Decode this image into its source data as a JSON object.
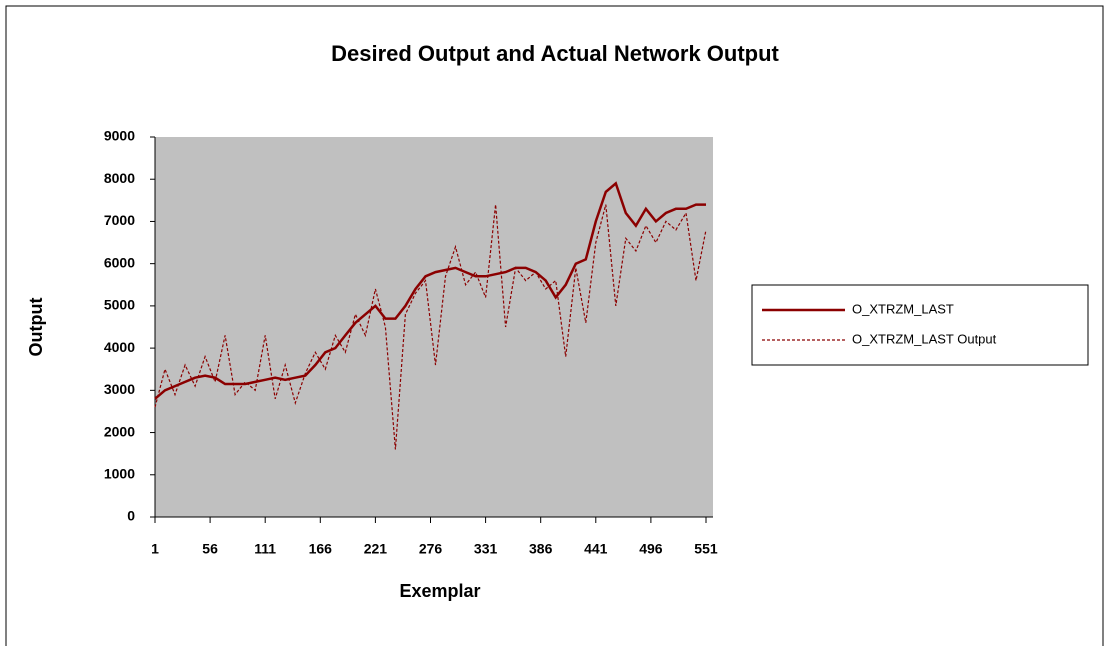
{
  "chart_data": {
    "type": "line",
    "title": "Desired Output and Actual Network Output",
    "x_label": "Exemplar",
    "y_label": "Output",
    "x": [
      1,
      11,
      21,
      31,
      41,
      51,
      61,
      71,
      81,
      91,
      101,
      111,
      121,
      131,
      141,
      151,
      161,
      171,
      181,
      191,
      201,
      211,
      221,
      231,
      241,
      251,
      261,
      271,
      281,
      291,
      301,
      311,
      321,
      331,
      341,
      351,
      361,
      371,
      381,
      391,
      401,
      411,
      421,
      431,
      441,
      451,
      461,
      471,
      481,
      491,
      501,
      511,
      521,
      531,
      541,
      551
    ],
    "series": [
      {
        "name": "O_XTRZM_LAST",
        "color": "#8b0000",
        "dash": false,
        "values": [
          2800,
          3000,
          3100,
          3200,
          3300,
          3350,
          3300,
          3150,
          3150,
          3150,
          3200,
          3250,
          3300,
          3250,
          3300,
          3350,
          3600,
          3900,
          4000,
          4300,
          4600,
          4800,
          5000,
          4700,
          4700,
          5000,
          5400,
          5700,
          5800,
          5850,
          5900,
          5800,
          5700,
          5700,
          5750,
          5800,
          5900,
          5900,
          5800,
          5600,
          5200,
          5500,
          6000,
          6100,
          7000,
          7700,
          7900,
          7200,
          6900,
          7300,
          7000,
          7200,
          7300,
          7300,
          7400,
          7400
        ]
      },
      {
        "name": "O_XTRZM_LAST Output",
        "color": "#8b0000",
        "dash": true,
        "values": [
          2600,
          3500,
          2900,
          3600,
          3100,
          3800,
          3200,
          4300,
          2900,
          3200,
          3000,
          4300,
          2800,
          3600,
          2700,
          3400,
          3900,
          3500,
          4300,
          3900,
          4800,
          4300,
          5400,
          4500,
          1600,
          4800,
          5300,
          5600,
          3600,
          5700,
          6400,
          5500,
          5800,
          5200,
          7400,
          4500,
          5900,
          5600,
          5800,
          5400,
          5600,
          3800,
          5900,
          4600,
          6500,
          7400,
          5000,
          6600,
          6300,
          6900,
          6500,
          7000,
          6800,
          7200,
          5600,
          6800
        ]
      }
    ],
    "xlim": [
      1,
      558
    ],
    "xticks": [
      1,
      56,
      111,
      166,
      221,
      276,
      331,
      386,
      441,
      496,
      551
    ],
    "ylim": [
      0,
      9000
    ],
    "yticks": [
      0,
      1000,
      2000,
      3000,
      4000,
      5000,
      6000,
      7000,
      8000,
      9000
    ],
    "plot_background": "#c0c0c0"
  }
}
